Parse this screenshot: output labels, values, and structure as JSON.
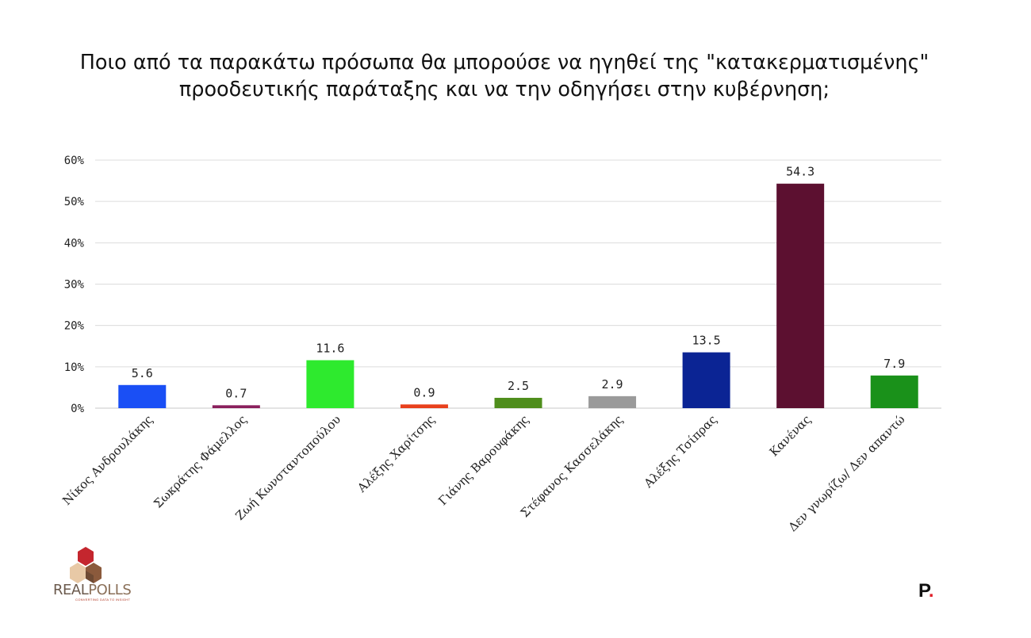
{
  "title": {
    "line1": "Ποιο από τα παρακάτω πρόσωπα θα μπορούσε να ηγηθεί της \"κατακερματισμένης\"",
    "line2": "προοδευτικής παράταξης και να την οδηγήσει στην κυβέρνηση;"
  },
  "chart_data": {
    "type": "bar",
    "title": "Ποιο από τα παρακάτω πρόσωπα θα μπορούσε να ηγηθεί της \"κατακερματισμένης\" προοδευτικής παράταξης και να την οδηγήσει στην κυβέρνηση;",
    "categories": [
      "Νίκος Ανδρουλάκης",
      "Σωκράτης Φάμελλος",
      "Ζωή Κωνσταντοπούλου",
      "Αλέξης Χαρίτσης",
      "Γιάνης Βαρουφάκης",
      "Στέφανος Κασσελάκης",
      "Αλέξης Τσίπρας",
      "Κανένας",
      "Δεν γνωρίζω/ Δεν απαντώ"
    ],
    "values": [
      5.6,
      0.7,
      11.6,
      0.9,
      2.5,
      2.9,
      13.5,
      54.3,
      7.9
    ],
    "value_labels": [
      "5.6",
      "0.7",
      "11.6",
      "0.9",
      "2.5",
      "2.9",
      "13.5",
      "54.3",
      "7.9"
    ],
    "colors": [
      "#1a4ff5",
      "#8a1f5c",
      "#2eea2e",
      "#e8401c",
      "#4f8e1c",
      "#9a9a9a",
      "#0b2494",
      "#5c1030",
      "#1a911a"
    ],
    "yticks": [
      "0%",
      "10%",
      "20%",
      "30%",
      "40%",
      "50%",
      "60%"
    ],
    "ylim": [
      0,
      60
    ],
    "grid": true,
    "legend": "none"
  },
  "logos": {
    "left_text_a": "REAL",
    "left_text_b": "POLLS",
    "left_subtext": "CONVERTING DATA TO INSIGHT",
    "right_letter": "P",
    "right_dot": "."
  }
}
